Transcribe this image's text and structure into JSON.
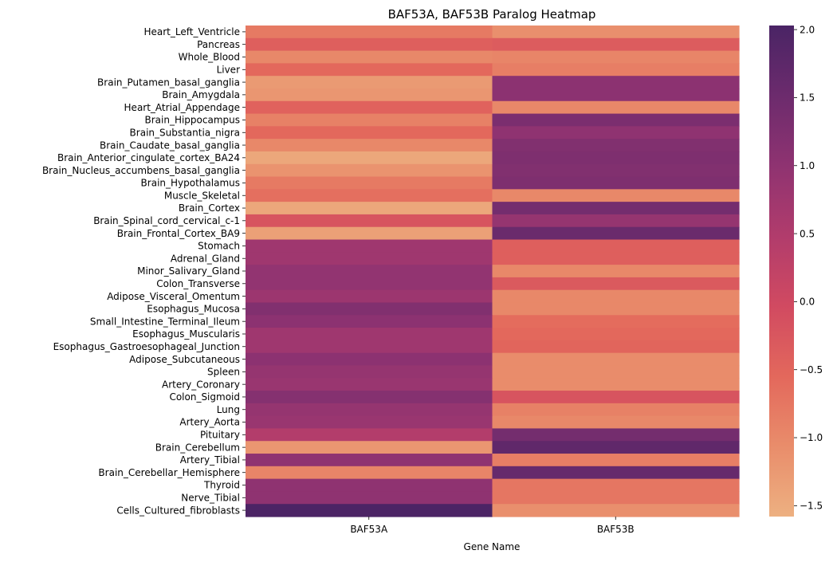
{
  "chart_data": {
    "type": "heatmap",
    "title": "BAF53A, BAF53B Paralog Heatmap",
    "xlabel": "Gene Name",
    "ylabel": "",
    "columns": [
      "BAF53A",
      "BAF53B"
    ],
    "rows": [
      "Heart_Left_Ventricle",
      "Pancreas",
      "Whole_Blood",
      "Liver",
      "Brain_Putamen_basal_ganglia",
      "Brain_Amygdala",
      "Heart_Atrial_Appendage",
      "Brain_Hippocampus",
      "Brain_Substantia_nigra",
      "Brain_Caudate_basal_ganglia",
      "Brain_Anterior_cingulate_cortex_BA24",
      "Brain_Nucleus_accumbens_basal_ganglia",
      "Brain_Hypothalamus",
      "Muscle_Skeletal",
      "Brain_Cortex",
      "Brain_Spinal_cord_cervical_c-1",
      "Brain_Frontal_Cortex_BA9",
      "Stomach",
      "Adrenal_Gland",
      "Minor_Salivary_Gland",
      "Colon_Transverse",
      "Adipose_Visceral_Omentum",
      "Esophagus_Mucosa",
      "Small_Intestine_Terminal_Ileum",
      "Esophagus_Muscularis",
      "Esophagus_Gastroesophageal_Junction",
      "Adipose_Subcutaneous",
      "Spleen",
      "Artery_Coronary",
      "Colon_Sigmoid",
      "Lung",
      "Artery_Aorta",
      "Pituitary",
      "Brain_Cerebellum",
      "Artery_Tibial",
      "Brain_Cerebellar_Hemisphere",
      "Thyroid",
      "Nerve_Tibial",
      "Cells_Cultured_fibroblasts"
    ],
    "values": [
      [
        -0.8,
        -1.1
      ],
      [
        -0.4,
        -0.35
      ],
      [
        -1.0,
        -0.95
      ],
      [
        -0.55,
        -0.85
      ],
      [
        -1.25,
        1.05
      ],
      [
        -1.2,
        1.05
      ],
      [
        -0.45,
        -1.0
      ],
      [
        -0.9,
        1.3
      ],
      [
        -0.55,
        1.0
      ],
      [
        -1.0,
        1.2
      ],
      [
        -1.45,
        1.25
      ],
      [
        -1.15,
        1.2
      ],
      [
        -0.8,
        1.25
      ],
      [
        -0.65,
        -1.0
      ],
      [
        -1.45,
        1.4
      ],
      [
        -0.2,
        0.9
      ],
      [
        -1.35,
        1.55
      ],
      [
        0.75,
        -0.4
      ],
      [
        0.75,
        -0.4
      ],
      [
        0.95,
        -1.0
      ],
      [
        0.95,
        -0.3
      ],
      [
        0.8,
        -1.0
      ],
      [
        1.2,
        -1.0
      ],
      [
        1.05,
        -0.6
      ],
      [
        0.75,
        -0.55
      ],
      [
        0.75,
        -0.5
      ],
      [
        1.05,
        -1.05
      ],
      [
        0.9,
        -1.05
      ],
      [
        0.85,
        -1.05
      ],
      [
        1.15,
        -0.2
      ],
      [
        0.9,
        -0.9
      ],
      [
        0.85,
        -1.0
      ],
      [
        0.45,
        1.4
      ],
      [
        -1.2,
        1.7
      ],
      [
        1.0,
        -0.85
      ],
      [
        -0.95,
        1.6
      ],
      [
        1.0,
        -0.75
      ],
      [
        1.0,
        -0.75
      ],
      [
        2.0,
        -1.1
      ]
    ],
    "colorbar": {
      "min": -1.58,
      "max": 2.03,
      "ticks": [
        -1.5,
        -1.0,
        -0.5,
        0.0,
        0.5,
        1.0,
        1.5,
        2.0
      ],
      "tick_labels": [
        "−1.5",
        "−1.0",
        "−0.5",
        "0.0",
        "0.5",
        "1.0",
        "1.5",
        "2.0"
      ],
      "colormap": "flare",
      "colormap_stops": [
        "#edb081",
        "#e98d6b",
        "#e3685c",
        "#d14a61",
        "#b13c6c",
        "#8f3371",
        "#6c2b6d",
        "#4a2465"
      ]
    },
    "grid": false,
    "legend": "colorbar-right"
  }
}
